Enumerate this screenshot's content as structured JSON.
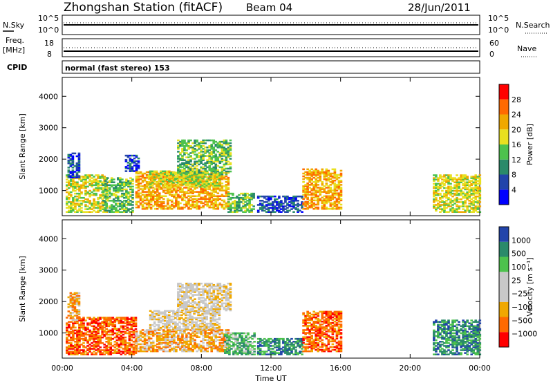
{
  "header": {
    "station": "Zhongshan Station (fitACF)",
    "beam": "Beam 04",
    "date": "28/Jun/2011"
  },
  "strip_labels": {
    "nsky": "N.Sky",
    "nsearch": "N.Search",
    "freq_top": "Freq.",
    "freq_unit": "[MHz]",
    "nave": "Nave",
    "cpid": "CPID",
    "cpid_value": "normal (fast stereo) 153",
    "noise_top": "10^5",
    "noise_bottom": "10^0",
    "freq_hi": "18",
    "freq_lo": "8",
    "nave_hi": "60",
    "nave_lo": "0"
  },
  "colors": {
    "power_scale": [
      "#0000ff",
      "#2244aa",
      "#2a8a6a",
      "#4dc24d",
      "#e8e020",
      "#f0a800",
      "#ff6a00",
      "#ff0000"
    ],
    "velocity_scale": [
      "#ff0000",
      "#ff6a00",
      "#f0a800",
      "#c8c8c8",
      "#c8c8c8",
      "#4dc24d",
      "#2a8a6a",
      "#2244aa"
    ]
  },
  "chart_data": [
    {
      "type": "heatmap",
      "name": "power",
      "ylabel": "Slant Range [km]",
      "colorbar_label": "Power [dB]",
      "colorbar_ticks": [
        "28",
        "24",
        "20",
        "16",
        "12",
        "8",
        "4"
      ],
      "ylim": [
        200,
        4600
      ],
      "yticks": [
        1000,
        2000,
        3000,
        4000
      ],
      "xlabel": "Time UT",
      "xticks": [
        "00:00",
        "04:00",
        "08:00",
        "12:00",
        "16:00",
        "20:00",
        "00:00"
      ],
      "xlim_hours": [
        0,
        24
      ],
      "regions": [
        {
          "t0": 0.2,
          "t1": 2.6,
          "r0": 300,
          "r1": 1500,
          "level": 4
        },
        {
          "t0": 0.3,
          "t1": 1.0,
          "r0": 1400,
          "r1": 2200,
          "level": 1
        },
        {
          "t0": 2.3,
          "t1": 4.0,
          "r0": 300,
          "r1": 1400,
          "level": 3
        },
        {
          "t0": 3.6,
          "t1": 4.4,
          "r0": 1600,
          "r1": 2100,
          "level": 1
        },
        {
          "t0": 4.2,
          "t1": 9.5,
          "r0": 400,
          "r1": 1600,
          "level": 5
        },
        {
          "t0": 5.0,
          "t1": 9.0,
          "r0": 1100,
          "r1": 1600,
          "level": 4
        },
        {
          "t0": 6.6,
          "t1": 9.6,
          "r0": 1500,
          "r1": 2600,
          "level": 3
        },
        {
          "t0": 9.5,
          "t1": 11.0,
          "r0": 300,
          "r1": 900,
          "level": 3
        },
        {
          "t0": 11.2,
          "t1": 13.8,
          "r0": 300,
          "r1": 800,
          "level": 1
        },
        {
          "t0": 13.8,
          "t1": 16.0,
          "r0": 400,
          "r1": 1700,
          "level": 5
        },
        {
          "t0": 21.3,
          "t1": 24.0,
          "r0": 300,
          "r1": 1500,
          "level": 4
        }
      ]
    },
    {
      "type": "heatmap",
      "name": "velocity",
      "ylabel": "Slant Range [km]",
      "colorbar_label": "Velocity [m s⁻¹]",
      "colorbar_ticks": [
        "1000",
        "500",
        "100",
        "25",
        "−25",
        "−100",
        "−500",
        "−1000"
      ],
      "ylim": [
        200,
        4600
      ],
      "yticks": [
        1000,
        2000,
        3000,
        4000
      ],
      "xlabel": "Time UT",
      "xticks": [
        "00:00",
        "04:00",
        "08:00",
        "12:00",
        "16:00",
        "20:00",
        "00:00"
      ],
      "xlim_hours": [
        0,
        24
      ],
      "regions": [
        {
          "t0": 0.2,
          "t1": 4.2,
          "r0": 300,
          "r1": 1500,
          "level": 1
        },
        {
          "t0": 0.3,
          "t1": 1.0,
          "r0": 1400,
          "r1": 2300,
          "level": 2
        },
        {
          "t0": 4.2,
          "t1": 9.5,
          "r0": 400,
          "r1": 1100,
          "level": 2
        },
        {
          "t0": 5.0,
          "t1": 9.0,
          "r0": 1100,
          "r1": 1700,
          "level": 3
        },
        {
          "t0": 6.6,
          "t1": 9.6,
          "r0": 1700,
          "r1": 2600,
          "level": 3
        },
        {
          "t0": 9.3,
          "t1": 11.0,
          "r0": 300,
          "r1": 1000,
          "level": 5
        },
        {
          "t0": 11.2,
          "t1": 13.8,
          "r0": 300,
          "r1": 800,
          "level": 6
        },
        {
          "t0": 13.8,
          "t1": 16.0,
          "r0": 400,
          "r1": 1700,
          "level": 1
        },
        {
          "t0": 21.3,
          "t1": 24.0,
          "r0": 300,
          "r1": 1400,
          "level": 6
        }
      ]
    }
  ]
}
